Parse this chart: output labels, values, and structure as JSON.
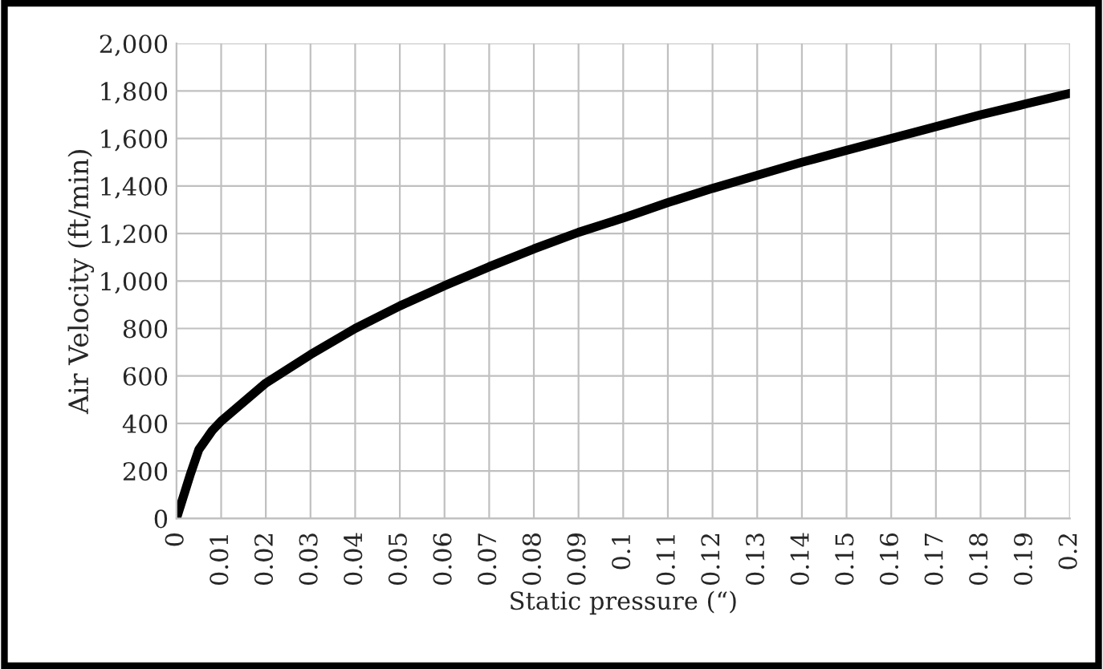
{
  "chart_data": {
    "type": "line",
    "xlabel": "Static pressure (“)",
    "ylabel": "Air Velocity (ft/min)",
    "x": [
      0,
      0.003,
      0.005,
      0.008,
      0.01,
      0.015,
      0.02,
      0.03,
      0.04,
      0.05,
      0.06,
      0.07,
      0.08,
      0.09,
      0.1,
      0.11,
      0.12,
      0.13,
      0.14,
      0.15,
      0.16,
      0.17,
      0.18,
      0.19,
      0.2
    ],
    "series": [
      {
        "color": "#000000",
        "values": [
          0,
          180,
          290,
          370,
          410,
          490,
          570,
          690,
          800,
          895,
          980,
          1060,
          1135,
          1205,
          1265,
          1330,
          1390,
          1445,
          1500,
          1550,
          1600,
          1650,
          1700,
          1745,
          1790
        ]
      }
    ],
    "xlim": [
      0,
      0.2
    ],
    "xticks": [
      0,
      0.01,
      0.02,
      0.03,
      0.04,
      0.05,
      0.06,
      0.07,
      0.08,
      0.09,
      0.1,
      0.11,
      0.12,
      0.13,
      0.14,
      0.15,
      0.16,
      0.17,
      0.18,
      0.19,
      0.2
    ],
    "ylim": [
      0,
      2000
    ],
    "yticks": [
      0,
      200,
      400,
      600,
      800,
      {
        "value": 1000,
        "label": "1,000"
      },
      {
        "value": 1200,
        "label": "1,200"
      },
      {
        "value": 1400,
        "label": "1,400"
      },
      {
        "value": 1600,
        "label": "1,600"
      },
      {
        "value": 1800,
        "label": "1,800"
      },
      {
        "value": 2000,
        "label": "2,000"
      }
    ],
    "grid": true,
    "line_style": "solid",
    "marker": "none"
  }
}
